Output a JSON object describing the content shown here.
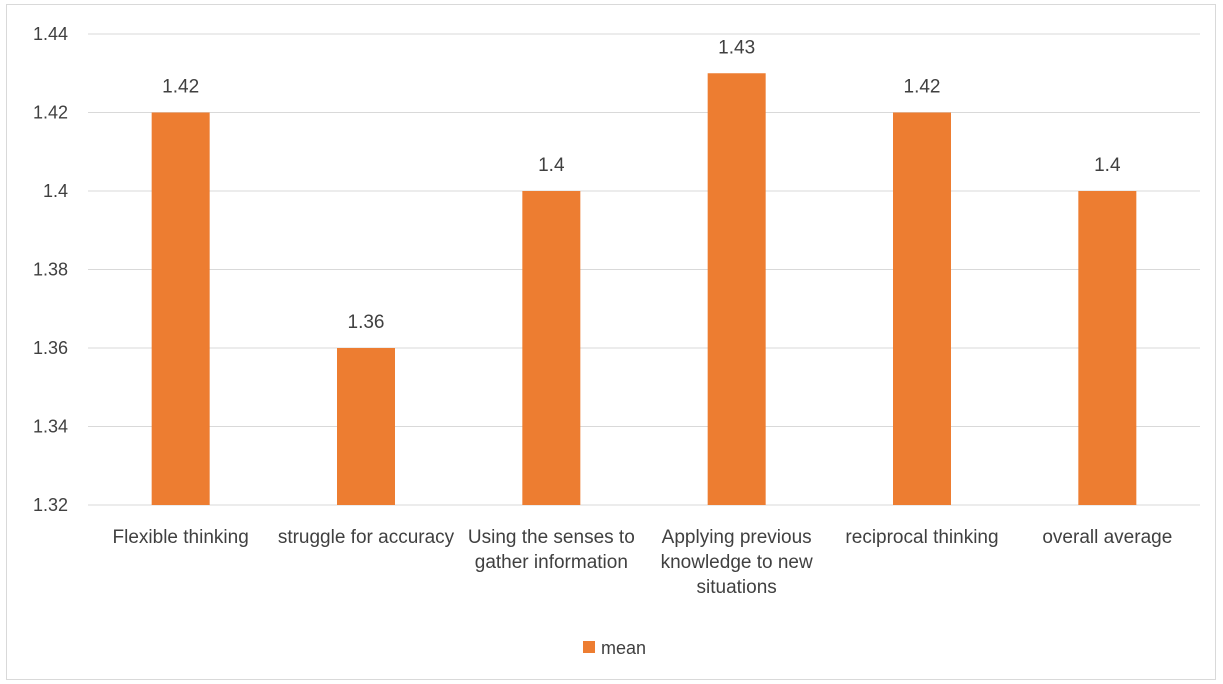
{
  "chart_data": {
    "type": "bar",
    "categories": [
      "Flexible thinking",
      "struggle for accuracy",
      "Using the senses to gather information",
      "Applying previous knowledge to new situations",
      "reciprocal thinking",
      "overall average"
    ],
    "series": [
      {
        "name": "mean",
        "values": [
          1.42,
          1.36,
          1.4,
          1.43,
          1.42,
          1.4
        ]
      }
    ],
    "data_labels": [
      "1.42",
      "1.36",
      "1.4",
      "1.43",
      "1.42",
      "1.4"
    ],
    "y_ticks": [
      "1.32",
      "1.34",
      "1.36",
      "1.38",
      "1.4",
      "1.42",
      "1.44"
    ],
    "ylim": [
      1.32,
      1.44
    ],
    "title": "",
    "xlabel": "",
    "ylabel": "",
    "grid": true,
    "legend_position": "bottom",
    "bar_color": "#ED7D31",
    "grid_color": "#d9d9d9"
  }
}
